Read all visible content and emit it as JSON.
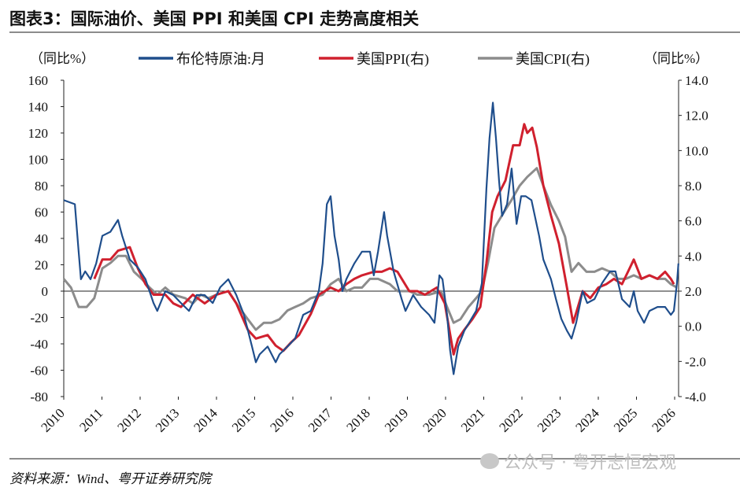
{
  "header": {
    "title": "图表3：国际油价、美国 PPI 和美国 CPI 走势高度相关"
  },
  "footer": {
    "source": "资料来源：Wind、粤开证券研究院",
    "watermark": "公众号 · 粤开志恒宏观"
  },
  "chart_data": {
    "type": "line",
    "title": "图表3：国际油价、美国 PPI 和美国 CPI 走势高度相关",
    "ylabel_left": "（同比%）",
    "ylabel_right": "（同比%）",
    "ylim_left": [
      -80,
      160
    ],
    "ylim_right": [
      -4.0,
      14.0
    ],
    "yticks_left": [
      "160",
      "140",
      "120",
      "100",
      "80",
      "60",
      "40",
      "20",
      "0",
      "-20",
      "-40",
      "-60",
      "-80"
    ],
    "yticks_right": [
      "14.0",
      "12.0",
      "10.0",
      "8.0",
      "6.0",
      "4.0",
      "2.0",
      "0.0",
      "-2.0",
      "-4.0"
    ],
    "xlim": [
      2010,
      2026.1
    ],
    "xticks": [
      "2010",
      "2011",
      "2012",
      "2013",
      "2014",
      "2015",
      "2016",
      "2017",
      "2018",
      "2019",
      "2020",
      "2021",
      "2022",
      "2023",
      "2024",
      "2025",
      "2026"
    ],
    "legend_position": "top",
    "colors": {
      "brent": "#1f4e8c",
      "ppi": "#d0202e",
      "cpi": "#8c8c8c"
    },
    "series": [
      {
        "name": "布伦特原油:月",
        "axis": "left",
        "color": "#1f4e8c",
        "x": [
          2010.0,
          2010.29,
          2010.39,
          2010.45,
          2010.56,
          2010.7,
          2010.85,
          2011.01,
          2011.22,
          2011.42,
          2011.53,
          2011.73,
          2011.94,
          2012.14,
          2012.35,
          2012.45,
          2012.66,
          2012.87,
          2013.07,
          2013.28,
          2013.48,
          2013.69,
          2013.9,
          2014.1,
          2014.31,
          2014.52,
          2014.72,
          2014.93,
          2015.03,
          2015.13,
          2015.34,
          2015.55,
          2015.65,
          2015.86,
          2016.06,
          2016.27,
          2016.47,
          2016.68,
          2016.78,
          2016.89,
          2016.99,
          2017.09,
          2017.2,
          2017.3,
          2017.4,
          2017.61,
          2017.81,
          2018.02,
          2018.12,
          2018.23,
          2018.39,
          2018.47,
          2018.64,
          2018.85,
          2018.95,
          2019.15,
          2019.36,
          2019.57,
          2019.71,
          2019.84,
          2019.92,
          2020.04,
          2020.12,
          2020.21,
          2020.33,
          2020.49,
          2020.8,
          2020.95,
          2021.07,
          2021.15,
          2021.24,
          2021.32,
          2021.4,
          2021.48,
          2021.61,
          2021.73,
          2021.86,
          2021.98,
          2022.1,
          2022.25,
          2022.45,
          2022.56,
          2022.76,
          2022.89,
          2023.03,
          2023.18,
          2023.3,
          2023.42,
          2023.59,
          2023.71,
          2023.9,
          2024.1,
          2024.31,
          2024.45,
          2024.62,
          2024.82,
          2024.93,
          2025.03,
          2025.2,
          2025.34,
          2025.55,
          2025.75,
          2025.9,
          2025.98,
          2026.06,
          2026.1
        ],
        "y": [
          69,
          66,
          30,
          9,
          15,
          9,
          21,
          42,
          45,
          54,
          42,
          24,
          18,
          9,
          -9,
          -15,
          0,
          -3,
          -9,
          -15,
          -3,
          -3,
          -9,
          3,
          9,
          -3,
          -18,
          -42,
          -54,
          -48,
          -42,
          -54,
          -48,
          -42,
          -36,
          -18,
          -15,
          0,
          21,
          66,
          72,
          42,
          24,
          0,
          9,
          21,
          30,
          30,
          12,
          30,
          60,
          42,
          15,
          -6,
          -15,
          -3,
          -12,
          -18,
          -24,
          12,
          9,
          -18,
          -45,
          -63,
          -42,
          -30,
          -15,
          6,
          78,
          116,
          143,
          116,
          84,
          57,
          66,
          93,
          51,
          72,
          72,
          69,
          42,
          24,
          9,
          -6,
          -21,
          -30,
          -36,
          -24,
          0,
          -9,
          -6,
          6,
          15,
          15,
          -6,
          -12,
          0,
          -15,
          -24,
          -15,
          -12,
          -12,
          -18,
          -15,
          6,
          21
        ]
      },
      {
        "name": "美国PPI(右)",
        "axis": "right",
        "color": "#d0202e",
        "x": [
          2010.8,
          2011.01,
          2011.22,
          2011.42,
          2011.73,
          2011.94,
          2012.14,
          2012.35,
          2012.66,
          2012.87,
          2013.07,
          2013.38,
          2013.69,
          2014.0,
          2014.31,
          2014.52,
          2014.82,
          2015.03,
          2015.34,
          2015.55,
          2015.75,
          2015.96,
          2016.16,
          2016.47,
          2016.68,
          2016.99,
          2017.2,
          2017.4,
          2017.61,
          2017.81,
          2018.12,
          2018.33,
          2018.54,
          2018.74,
          2019.05,
          2019.26,
          2019.46,
          2019.77,
          2019.98,
          2020.21,
          2020.33,
          2020.49,
          2020.7,
          2020.91,
          2021.07,
          2021.22,
          2021.36,
          2021.57,
          2021.77,
          2021.94,
          2022.06,
          2022.14,
          2022.27,
          2022.39,
          2022.56,
          2022.76,
          2022.97,
          2023.18,
          2023.34,
          2023.44,
          2023.59,
          2023.79,
          2024.0,
          2024.21,
          2024.41,
          2024.62,
          2024.82,
          2024.93,
          2025.13,
          2025.34,
          2025.55,
          2025.75,
          2025.9,
          2025.98
        ],
        "y": [
          2.7,
          3.8,
          3.8,
          4.3,
          4.5,
          3.3,
          2.4,
          1.8,
          1.8,
          1.3,
          1.1,
          1.8,
          1.3,
          1.8,
          2.0,
          1.3,
          -0.2,
          -0.7,
          -0.5,
          -1.1,
          -1.4,
          -0.9,
          -0.5,
          0.7,
          1.8,
          2.2,
          2.0,
          2.4,
          2.7,
          2.9,
          3.1,
          3.1,
          3.3,
          3.1,
          2.0,
          2.0,
          1.8,
          2.2,
          1.3,
          -1.6,
          -0.7,
          -0.2,
          0.4,
          1.1,
          3.6,
          6.5,
          7.4,
          8.3,
          10.3,
          10.3,
          11.5,
          11.0,
          11.3,
          10.2,
          8.0,
          6.3,
          4.7,
          2.2,
          0.2,
          0.9,
          2.0,
          1.6,
          2.2,
          2.4,
          2.7,
          2.4,
          3.3,
          3.8,
          2.7,
          2.9,
          2.7,
          3.1,
          2.7,
          2.4
        ]
      },
      {
        "name": "美国CPI(右)",
        "axis": "right",
        "color": "#8c8c8c",
        "x": [
          2010.0,
          2010.19,
          2010.39,
          2010.6,
          2010.8,
          2011.01,
          2011.22,
          2011.42,
          2011.63,
          2011.84,
          2012.04,
          2012.25,
          2012.45,
          2012.66,
          2012.87,
          2013.18,
          2013.38,
          2013.59,
          2013.79,
          2014.0,
          2014.31,
          2014.52,
          2014.82,
          2015.03,
          2015.24,
          2015.44,
          2015.65,
          2015.86,
          2016.06,
          2016.27,
          2016.47,
          2016.78,
          2016.99,
          2017.2,
          2017.4,
          2017.61,
          2017.81,
          2018.02,
          2018.23,
          2018.54,
          2018.74,
          2019.05,
          2019.26,
          2019.57,
          2019.88,
          2020.04,
          2020.21,
          2020.39,
          2020.6,
          2020.8,
          2020.95,
          2021.11,
          2021.28,
          2021.53,
          2021.73,
          2021.94,
          2022.14,
          2022.39,
          2022.56,
          2022.76,
          2022.97,
          2023.13,
          2023.3,
          2023.48,
          2023.69,
          2023.9,
          2024.1,
          2024.31,
          2024.52,
          2024.72,
          2024.93,
          2025.13,
          2025.34,
          2025.55,
          2025.75,
          2025.9,
          2026.06
        ],
        "y": [
          2.7,
          2.2,
          1.1,
          1.1,
          1.6,
          3.3,
          3.6,
          4.0,
          4.0,
          3.1,
          2.7,
          2.2,
          1.8,
          2.2,
          1.8,
          1.6,
          1.3,
          1.8,
          1.6,
          1.8,
          2.0,
          1.3,
          0.4,
          -0.2,
          0.2,
          0.2,
          0.4,
          0.9,
          1.1,
          1.3,
          1.6,
          1.8,
          2.4,
          2.7,
          2.0,
          2.2,
          2.2,
          2.7,
          2.7,
          2.4,
          2.0,
          2.0,
          1.8,
          1.8,
          2.0,
          1.1,
          0.2,
          0.4,
          1.1,
          1.6,
          2.0,
          3.6,
          5.6,
          6.5,
          7.2,
          8.0,
          8.5,
          9.0,
          8.0,
          6.9,
          6.0,
          5.1,
          3.1,
          3.6,
          3.1,
          3.1,
          3.3,
          3.1,
          2.7,
          2.7,
          2.9,
          2.7,
          2.9,
          2.7,
          2.7,
          2.4,
          2.2
        ]
      }
    ]
  }
}
